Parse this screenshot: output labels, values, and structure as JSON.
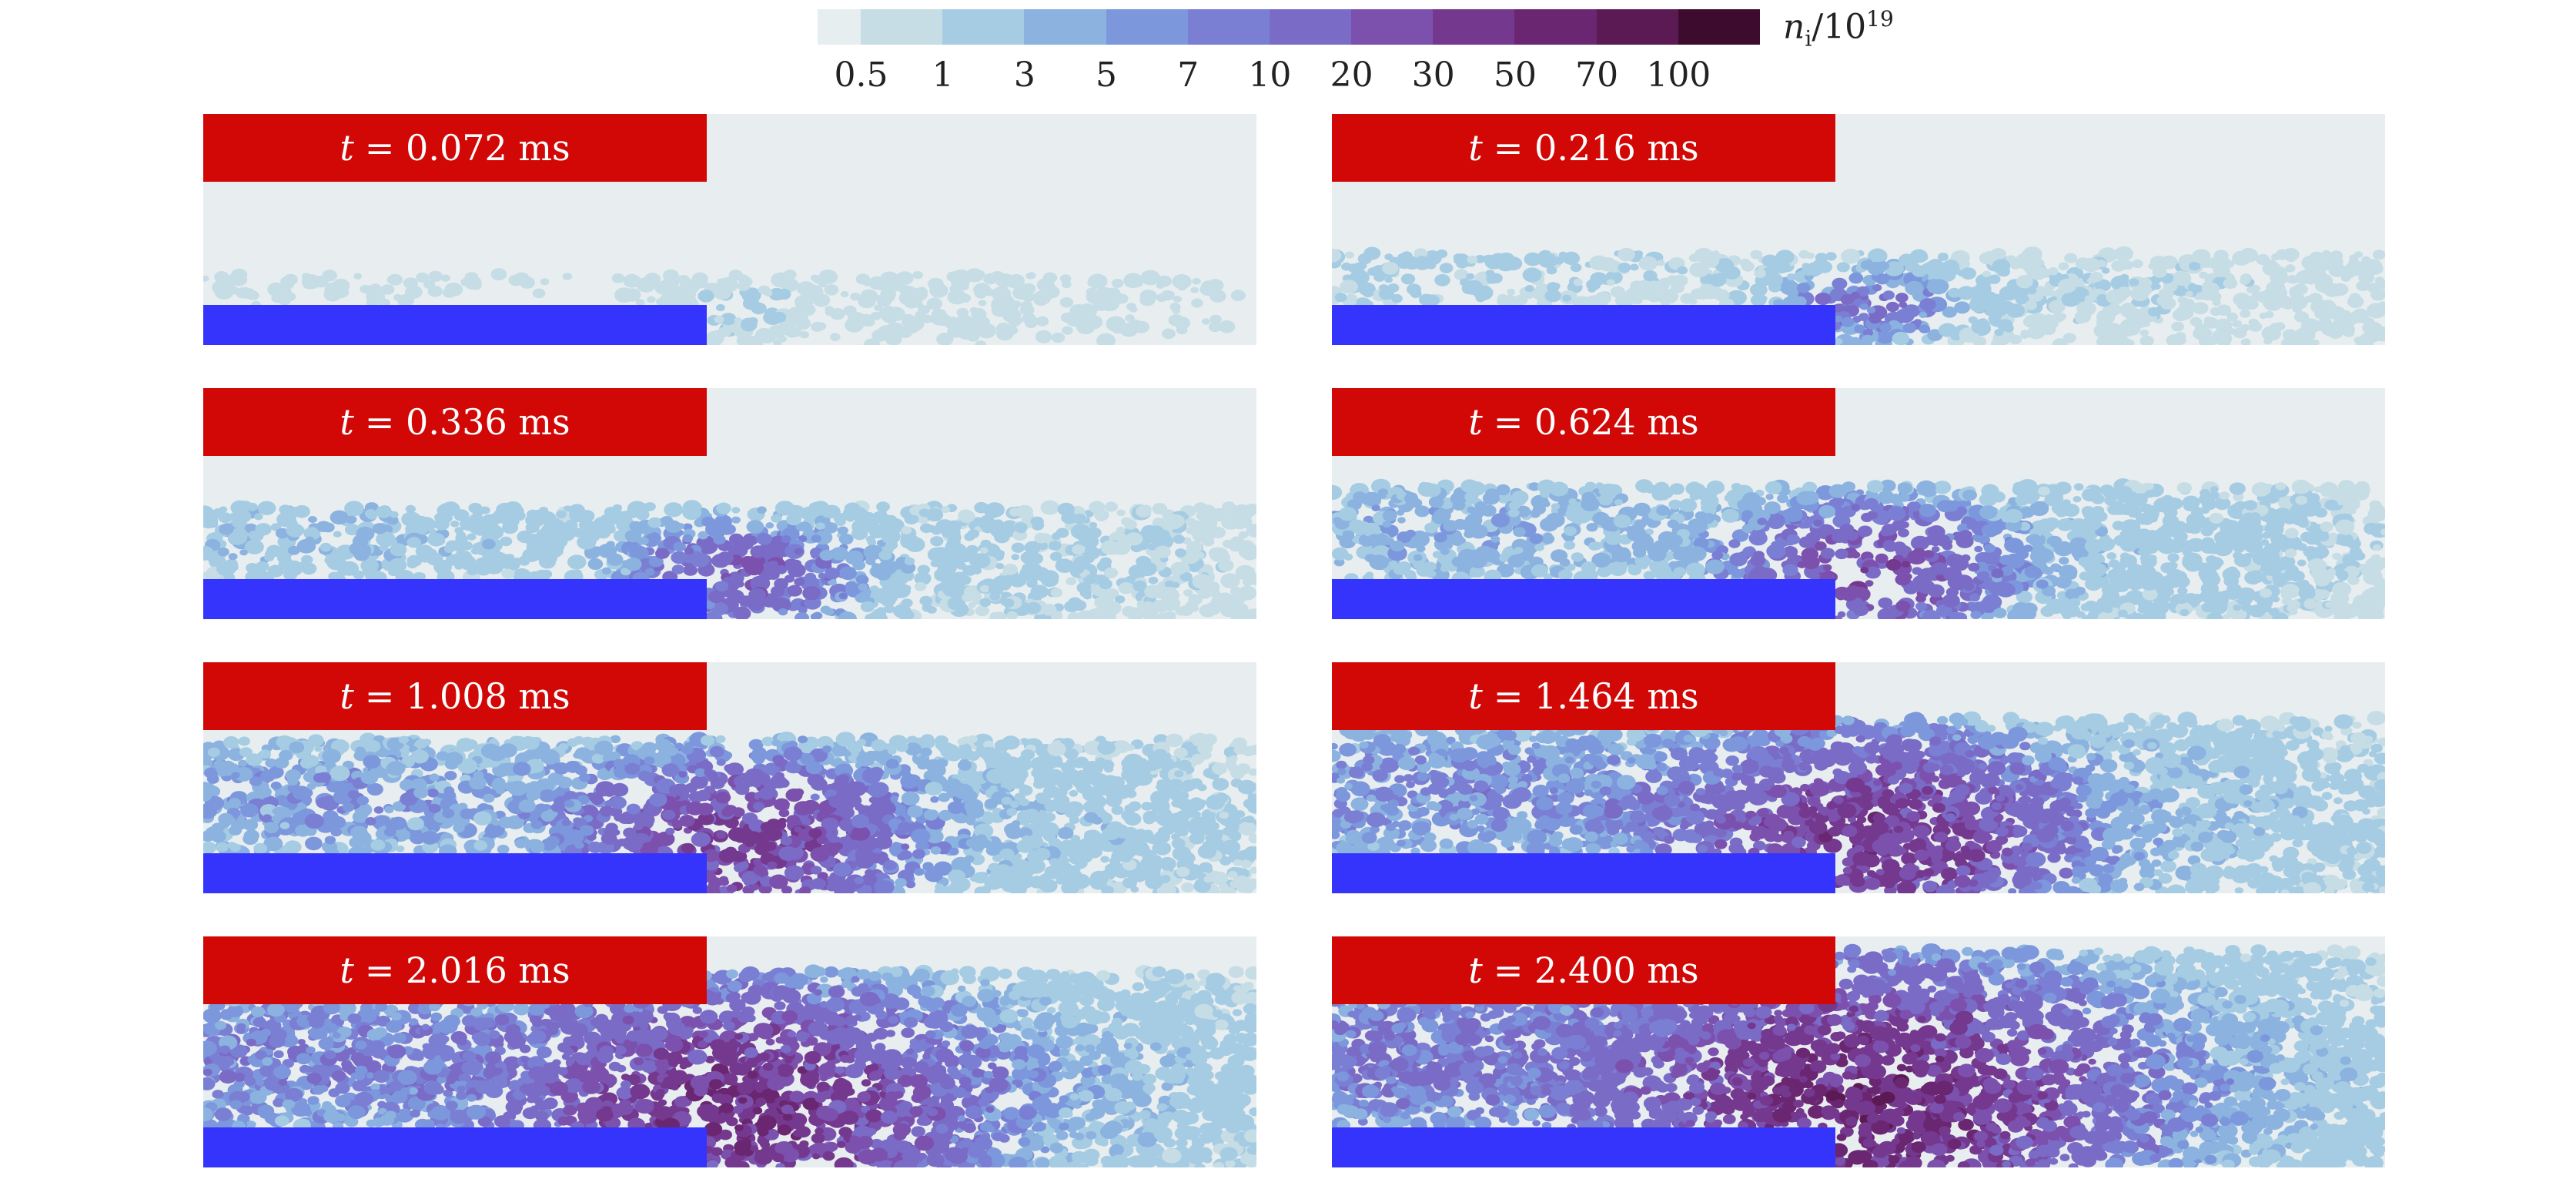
{
  "chart_data": {
    "type": "heatmap",
    "quantity_label": "n",
    "quantity_subscript": "i",
    "quantity_unit": "/10",
    "quantity_exponent": "19",
    "colorbar": {
      "ticks": [
        "0.5",
        "1",
        "3",
        "5",
        "7",
        "10",
        "20",
        "30",
        "50",
        "70",
        "100"
      ],
      "colors": [
        "#e6eef0",
        "#c6dde6",
        "#a6cce3",
        "#8cb3e0",
        "#7d97dc",
        "#7b7fd4",
        "#7a6bc7",
        "#7c51ae",
        "#75388f",
        "#6a2671",
        "#5b1a53",
        "#3d0b2e"
      ]
    },
    "panels": [
      {
        "t_var": "t",
        "t_text": "= 0.072 ms",
        "time_ms": 0.072
      },
      {
        "t_var": "t",
        "t_text": "= 0.216 ms",
        "time_ms": 0.216
      },
      {
        "t_var": "t",
        "t_text": "= 0.336 ms",
        "time_ms": 0.336
      },
      {
        "t_var": "t",
        "t_text": "= 0.624 ms",
        "time_ms": 0.624
      },
      {
        "t_var": "t",
        "t_text": "= 1.008 ms",
        "time_ms": 1.008
      },
      {
        "t_var": "t",
        "t_text": "= 1.464 ms",
        "time_ms": 1.464
      },
      {
        "t_var": "t",
        "t_text": "= 2.016 ms",
        "time_ms": 2.016
      },
      {
        "t_var": "t",
        "t_text": "= 2.400 ms",
        "time_ms": 2.4
      }
    ],
    "colors": {
      "background": "#e8eeef",
      "time_label": "#d10806",
      "target": "#3434fc"
    }
  }
}
